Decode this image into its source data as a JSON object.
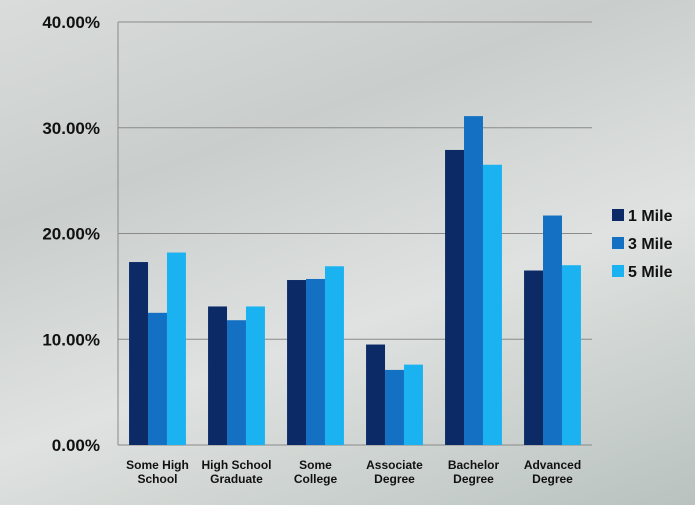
{
  "chart_data": {
    "type": "bar",
    "categories": [
      "Some High School",
      "High School Graduate",
      "Some College",
      "Associate Degree",
      "Bachelor Degree",
      "Advanced Degree"
    ],
    "series": [
      {
        "name": "1 Mile",
        "color": "#0b2a66",
        "values": [
          17.3,
          13.1,
          15.6,
          9.5,
          27.9,
          16.5
        ]
      },
      {
        "name": "3 Mile",
        "color": "#1470c2",
        "values": [
          12.5,
          11.8,
          15.7,
          7.1,
          31.1,
          21.7
        ]
      },
      {
        "name": "5 Mile",
        "color": "#1ab2f0",
        "values": [
          18.2,
          13.1,
          16.9,
          7.6,
          26.5,
          17.0
        ]
      }
    ],
    "ylim": [
      0,
      40
    ],
    "yticks": [
      {
        "value": 0,
        "label": "0.00%"
      },
      {
        "value": 10,
        "label": "10.00%"
      },
      {
        "value": 20,
        "label": "20.00%"
      },
      {
        "value": 30,
        "label": "30.00%"
      },
      {
        "value": 40,
        "label": "40.00%"
      }
    ],
    "grid": true,
    "legend": "right"
  }
}
